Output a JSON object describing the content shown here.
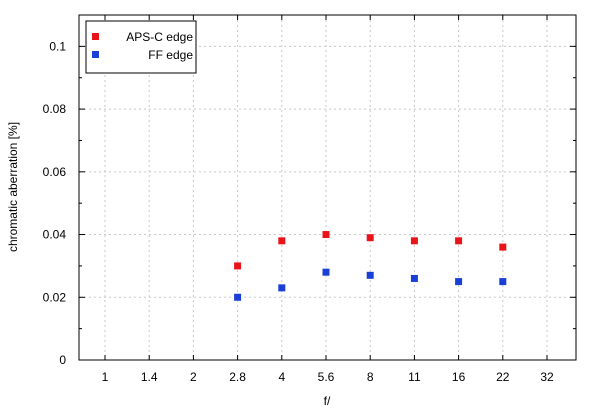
{
  "chart_data": {
    "type": "scatter",
    "xlabel": "f/",
    "ylabel": "chromatic aberration [%]",
    "x_categories": [
      "1",
      "1.4",
      "2",
      "2.8",
      "4",
      "5.6",
      "8",
      "11",
      "16",
      "22",
      "32"
    ],
    "yticks": [
      "0",
      "0.02",
      "0.04",
      "0.06",
      "0.08",
      "0.1"
    ],
    "ylim": [
      0,
      0.11
    ],
    "grid": true,
    "legend_position": "top-left",
    "series": [
      {
        "name": "APS-C edge",
        "color": "#e8141a",
        "points": [
          {
            "x": "2.8",
            "y": 0.03
          },
          {
            "x": "4",
            "y": 0.038
          },
          {
            "x": "5.6",
            "y": 0.04
          },
          {
            "x": "8",
            "y": 0.039
          },
          {
            "x": "11",
            "y": 0.038
          },
          {
            "x": "16",
            "y": 0.038
          },
          {
            "x": "22",
            "y": 0.036
          }
        ]
      },
      {
        "name": "FF edge",
        "color": "#1a3fd6",
        "points": [
          {
            "x": "2.8",
            "y": 0.02
          },
          {
            "x": "4",
            "y": 0.023
          },
          {
            "x": "5.6",
            "y": 0.028
          },
          {
            "x": "8",
            "y": 0.027
          },
          {
            "x": "11",
            "y": 0.026
          },
          {
            "x": "16",
            "y": 0.025
          },
          {
            "x": "22",
            "y": 0.025
          }
        ]
      }
    ]
  }
}
